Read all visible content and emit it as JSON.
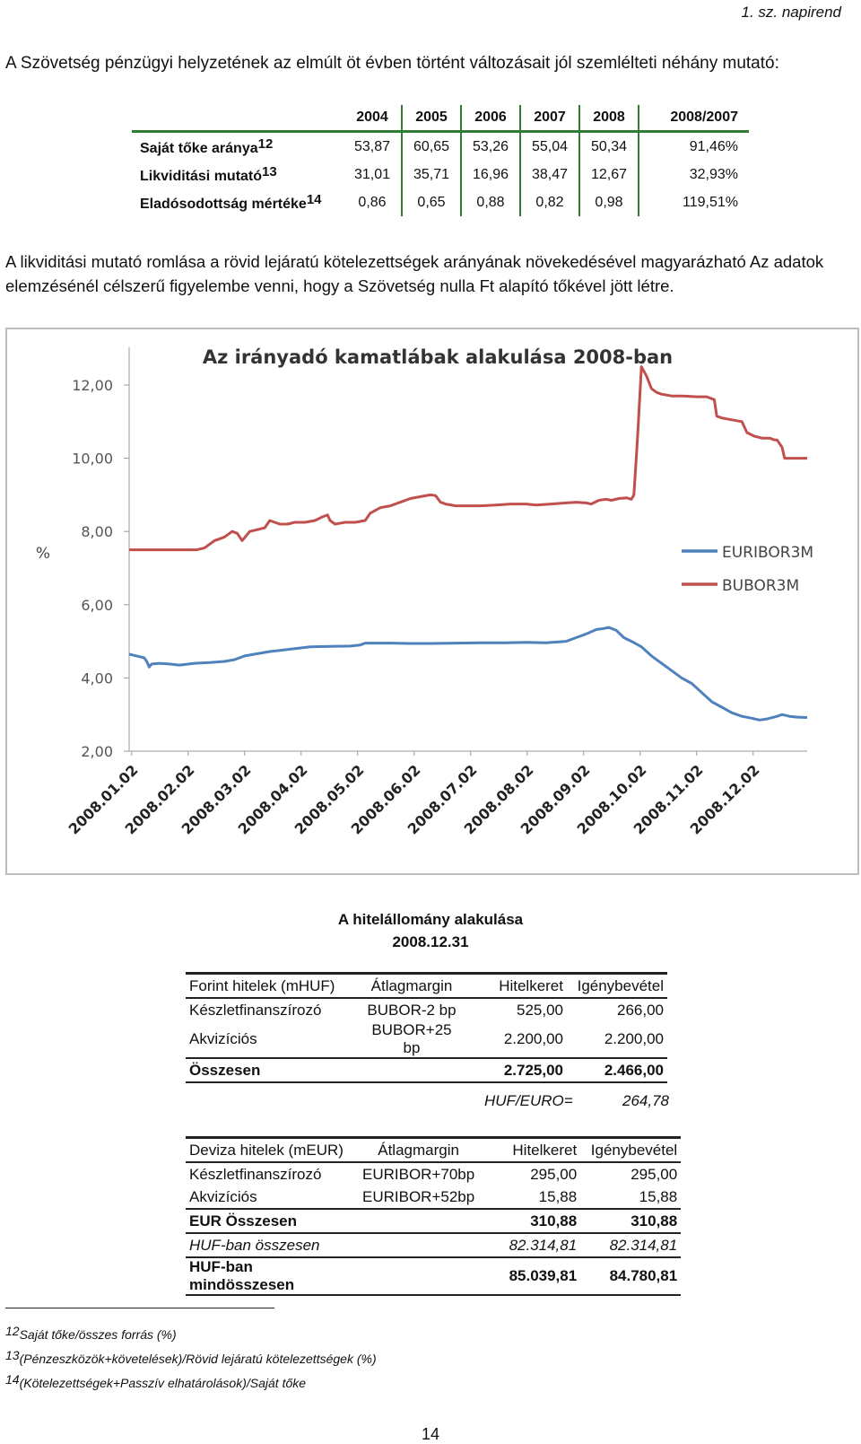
{
  "header": {
    "napirend": "1. sz. napirend"
  },
  "intro_text": "A Szövetség pénzügyi helyzetének az elmúlt öt évben történt változásait jól szemlélteti néhány mutató:",
  "indicators": {
    "years": [
      "2004",
      "2005",
      "2006",
      "2007",
      "2008",
      "2008/2007"
    ],
    "rows": [
      {
        "label": "Saját tőke aránya",
        "ref": "12",
        "values": [
          "53,87",
          "60,65",
          "53,26",
          "55,04",
          "50,34",
          "91,46%"
        ]
      },
      {
        "label": "Likviditási mutató",
        "ref": "13",
        "values": [
          "31,01",
          "35,71",
          "16,96",
          "38,47",
          "12,67",
          "32,93%"
        ]
      },
      {
        "label": "Eladósodottság mértéke",
        "ref": "14",
        "values": [
          "0,86",
          "0,65",
          "0,88",
          "0,82",
          "0,98",
          "119,51%"
        ]
      }
    ]
  },
  "paragraph": "A likviditási mutató romlása a rövid lejáratú kötelezettségek arányának növekedésével magyarázható Az adatok elemzésénél célszerű figyelembe venni, hogy a Szövetség nulla Ft alapító tőkével jött létre.",
  "chart_data": {
    "type": "line",
    "title": "Az irányadó kamatlábak alakulása 2008-ban",
    "ylabel": "%",
    "ylim": [
      2,
      12.5
    ],
    "yticks": [
      "12,00",
      "10,00",
      "8,00",
      "6,00",
      "4,00",
      "2,00"
    ],
    "ytick_values": [
      12,
      10,
      8,
      6,
      4,
      2
    ],
    "categories": [
      "2008.01.02",
      "2008.02.02",
      "2008.03.02",
      "2008.04.02",
      "2008.05.02",
      "2008.06.02",
      "2008.07.02",
      "2008.08.02",
      "2008.09.02",
      "2008.10.02",
      "2008.11.02",
      "2008.12.02"
    ],
    "legend_position": "right",
    "grid": false,
    "series": [
      {
        "name": "EURIBOR3M",
        "color": "#4f81bd",
        "points": [
          [
            0,
            4.65
          ],
          [
            0.15,
            4.6
          ],
          [
            0.3,
            4.55
          ],
          [
            0.35,
            4.45
          ],
          [
            0.4,
            4.3
          ],
          [
            0.45,
            4.38
          ],
          [
            0.6,
            4.4
          ],
          [
            0.8,
            4.38
          ],
          [
            1.0,
            4.35
          ],
          [
            1.3,
            4.4
          ],
          [
            1.6,
            4.42
          ],
          [
            1.9,
            4.45
          ],
          [
            2.1,
            4.5
          ],
          [
            2.3,
            4.6
          ],
          [
            2.5,
            4.65
          ],
          [
            2.8,
            4.72
          ],
          [
            3.0,
            4.75
          ],
          [
            3.3,
            4.8
          ],
          [
            3.6,
            4.85
          ],
          [
            4.0,
            4.86
          ],
          [
            4.4,
            4.87
          ],
          [
            4.6,
            4.9
          ],
          [
            4.7,
            4.95
          ],
          [
            5.2,
            4.95
          ],
          [
            5.6,
            4.94
          ],
          [
            6.0,
            4.94
          ],
          [
            6.5,
            4.95
          ],
          [
            7.0,
            4.96
          ],
          [
            7.5,
            4.96
          ],
          [
            7.9,
            4.97
          ],
          [
            8.3,
            4.96
          ],
          [
            8.7,
            5.0
          ],
          [
            8.9,
            5.1
          ],
          [
            9.1,
            5.2
          ],
          [
            9.3,
            5.32
          ],
          [
            9.45,
            5.35
          ],
          [
            9.55,
            5.38
          ],
          [
            9.7,
            5.3
          ],
          [
            9.85,
            5.1
          ],
          [
            10.0,
            5.0
          ],
          [
            10.2,
            4.85
          ],
          [
            10.4,
            4.6
          ],
          [
            10.6,
            4.4
          ],
          [
            10.8,
            4.2
          ],
          [
            11.0,
            4.0
          ],
          [
            11.2,
            3.85
          ],
          [
            11.4,
            3.6
          ],
          [
            11.6,
            3.35
          ],
          [
            11.8,
            3.2
          ],
          [
            12.0,
            3.05
          ],
          [
            12.2,
            2.95
          ],
          [
            12.4,
            2.9
          ],
          [
            12.55,
            2.85
          ],
          [
            12.7,
            2.88
          ],
          [
            12.9,
            2.95
          ],
          [
            13.0,
            3.0
          ],
          [
            13.15,
            2.95
          ],
          [
            13.3,
            2.93
          ],
          [
            13.5,
            2.92
          ]
        ]
      },
      {
        "name": "BUBOR3M",
        "color": "#c0504d",
        "points": [
          [
            0,
            7.5
          ],
          [
            0.5,
            7.5
          ],
          [
            0.9,
            7.5
          ],
          [
            1.2,
            7.5
          ],
          [
            1.35,
            7.5
          ],
          [
            1.5,
            7.55
          ],
          [
            1.7,
            7.75
          ],
          [
            1.8,
            7.8
          ],
          [
            1.9,
            7.85
          ],
          [
            2.05,
            8.0
          ],
          [
            2.15,
            7.95
          ],
          [
            2.25,
            7.75
          ],
          [
            2.4,
            8.0
          ],
          [
            2.55,
            8.05
          ],
          [
            2.7,
            8.1
          ],
          [
            2.8,
            8.3
          ],
          [
            2.9,
            8.25
          ],
          [
            3.0,
            8.2
          ],
          [
            3.15,
            8.2
          ],
          [
            3.3,
            8.25
          ],
          [
            3.5,
            8.25
          ],
          [
            3.7,
            8.3
          ],
          [
            3.85,
            8.4
          ],
          [
            3.95,
            8.45
          ],
          [
            4.0,
            8.3
          ],
          [
            4.1,
            8.2
          ],
          [
            4.3,
            8.25
          ],
          [
            4.5,
            8.25
          ],
          [
            4.7,
            8.3
          ],
          [
            4.8,
            8.5
          ],
          [
            5.0,
            8.65
          ],
          [
            5.2,
            8.7
          ],
          [
            5.4,
            8.8
          ],
          [
            5.6,
            8.9
          ],
          [
            5.8,
            8.95
          ],
          [
            6.0,
            9.0
          ],
          [
            6.1,
            8.98
          ],
          [
            6.2,
            8.8
          ],
          [
            6.3,
            8.75
          ],
          [
            6.5,
            8.7
          ],
          [
            6.8,
            8.7
          ],
          [
            7.0,
            8.7
          ],
          [
            7.3,
            8.72
          ],
          [
            7.6,
            8.75
          ],
          [
            7.9,
            8.75
          ],
          [
            8.1,
            8.72
          ],
          [
            8.4,
            8.75
          ],
          [
            8.7,
            8.78
          ],
          [
            8.9,
            8.8
          ],
          [
            9.1,
            8.78
          ],
          [
            9.2,
            8.75
          ],
          [
            9.35,
            8.85
          ],
          [
            9.5,
            8.88
          ],
          [
            9.6,
            8.85
          ],
          [
            9.75,
            8.9
          ],
          [
            9.9,
            8.92
          ],
          [
            10.0,
            8.88
          ],
          [
            10.05,
            9.0
          ],
          [
            10.12,
            10.5
          ],
          [
            10.2,
            12.5
          ],
          [
            10.3,
            12.25
          ],
          [
            10.4,
            11.9
          ],
          [
            10.5,
            11.8
          ],
          [
            10.6,
            11.75
          ],
          [
            10.8,
            11.7
          ],
          [
            11.0,
            11.7
          ],
          [
            11.3,
            11.68
          ],
          [
            11.5,
            11.68
          ],
          [
            11.65,
            11.6
          ],
          [
            11.7,
            11.15
          ],
          [
            11.8,
            11.1
          ],
          [
            12.0,
            11.05
          ],
          [
            12.2,
            11.0
          ],
          [
            12.3,
            10.7
          ],
          [
            12.45,
            10.6
          ],
          [
            12.6,
            10.55
          ],
          [
            12.75,
            10.55
          ],
          [
            12.85,
            10.5
          ],
          [
            12.9,
            10.5
          ],
          [
            13.0,
            10.3
          ],
          [
            13.05,
            10.0
          ],
          [
            13.2,
            10.0
          ],
          [
            13.35,
            10.0
          ],
          [
            13.5,
            10.0
          ]
        ]
      }
    ]
  },
  "hitel": {
    "title": "A hitelállomány alakulása",
    "date": "2008.12.31",
    "forint": {
      "headers": [
        "Forint hitelek (mHUF)",
        "Átlagmargin",
        "Hitelkeret",
        "Igénybevétel"
      ],
      "rows": [
        [
          "Készletfinanszírozó",
          "BUBOR-2 bp",
          "525,00",
          "266,00"
        ],
        [
          "Akvizíciós",
          "BUBOR+25 bp",
          "2.200,00",
          "2.200,00"
        ]
      ],
      "total": [
        "Összesen",
        "",
        "2.725,00",
        "2.466,00"
      ]
    },
    "rate_label": "HUF/EURO=",
    "rate_value": "264,78",
    "deviza": {
      "headers": [
        "Deviza hitelek (mEUR)",
        "Átlagmargin",
        "Hitelkeret",
        "Igénybevétel"
      ],
      "rows": [
        [
          "Készletfinanszírozó",
          "EURIBOR+70bp",
          "295,00",
          "295,00"
        ],
        [
          "Akvizíciós",
          "EURIBOR+52bp",
          "15,88",
          "15,88"
        ]
      ],
      "eur_total": [
        "EUR Összesen",
        "",
        "310,88",
        "310,88"
      ],
      "huf_total": [
        "HUF-ban összesen",
        "",
        "82.314,81",
        "82.314,81"
      ],
      "grand_total": [
        "HUF-ban mindösszesen",
        "",
        "85.039,81",
        "84.780,81"
      ]
    }
  },
  "footnotes": [
    {
      "num": "12",
      "text": "Saját tőke/összes forrás (%)"
    },
    {
      "num": "13",
      "text": "(Pénzeszközök+követelések)/Rövid lejáratú kötelezettségek (%)"
    },
    {
      "num": "14",
      "text": "(Kötelezettségek+Passzív elhatárolások)/Saját tőke"
    }
  ],
  "page_number": "14"
}
